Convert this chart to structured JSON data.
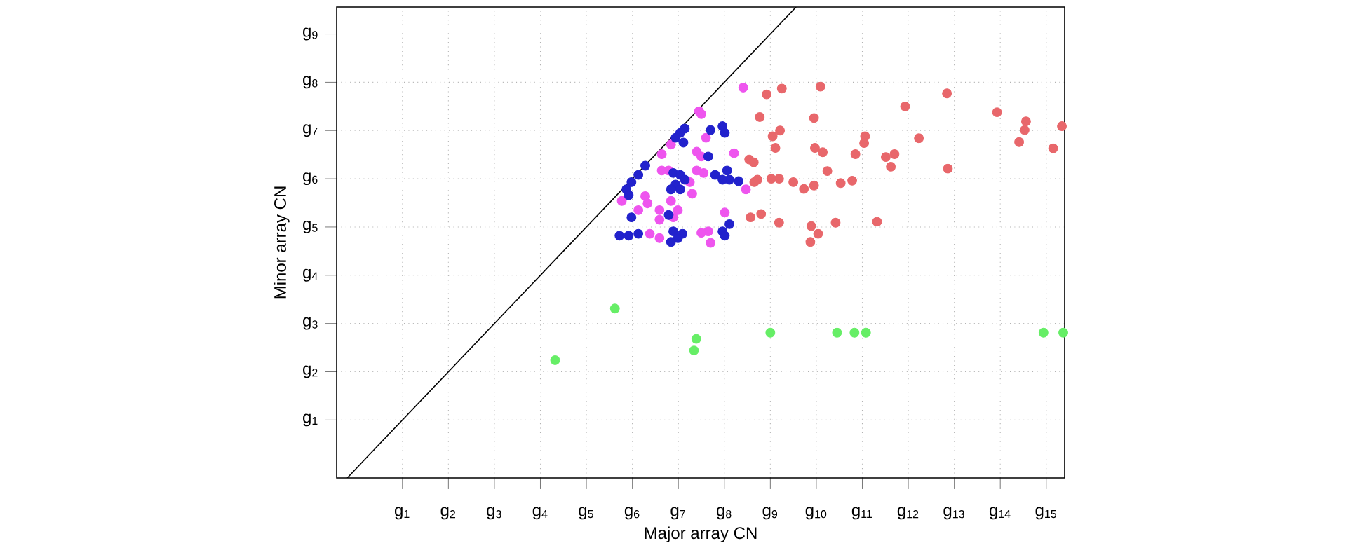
{
  "chart_data": {
    "type": "scatter",
    "xlabel": "Major array CN",
    "ylabel": "Minor array CN",
    "xlim": [
      -0.43,
      15.4
    ],
    "ylim": [
      -0.2,
      9.56
    ],
    "xticks": [
      {
        "value": 1,
        "label": "g$_{1}$"
      },
      {
        "value": 2,
        "label": "g$_{2}$"
      },
      {
        "value": 3,
        "label": "g$_{3}$"
      },
      {
        "value": 4,
        "label": "g$_{4}$"
      },
      {
        "value": 5,
        "label": "g$_{5}$"
      },
      {
        "value": 6,
        "label": "g$_{6}$"
      },
      {
        "value": 7,
        "label": "g$_{7}$"
      },
      {
        "value": 8,
        "label": "g$_{8}$"
      },
      {
        "value": 9,
        "label": "g$_{9}$"
      },
      {
        "value": 10,
        "label": "g$_{10}$"
      },
      {
        "value": 11,
        "label": "g$_{11}$"
      },
      {
        "value": 12,
        "label": "g$_{12}$"
      },
      {
        "value": 13,
        "label": "g$_{13}$"
      },
      {
        "value": 14,
        "label": "g$_{14}$"
      },
      {
        "value": 15,
        "label": "g$_{15}$"
      }
    ],
    "yticks": [
      {
        "value": 1,
        "label": "g$_{1}$"
      },
      {
        "value": 2,
        "label": "g$_{2}$"
      },
      {
        "value": 3,
        "label": "g$_{3}$"
      },
      {
        "value": 4,
        "label": "g$_{4}$"
      },
      {
        "value": 5,
        "label": "g$_{5}$"
      },
      {
        "value": 6,
        "label": "g$_{6}$"
      },
      {
        "value": 7,
        "label": "g$_{7}$"
      },
      {
        "value": 8,
        "label": "g$_{8}$"
      },
      {
        "value": 9,
        "label": "g$_{9}$"
      }
    ],
    "grid": true,
    "legend": false,
    "series": [
      {
        "type": "line",
        "marker": "none",
        "color": "#000000",
        "x": [
          -0.2,
          9.56
        ],
        "values": [
          -0.2,
          9.56
        ]
      },
      {
        "marker": "circle",
        "color": "#e8676b",
        "x": [
          8.92,
          9.25,
          10.09,
          8.77,
          9.95,
          9.21,
          9.05,
          9.11,
          9.97,
          10.14,
          11.06,
          11.04,
          10.85,
          11.93,
          12.84,
          12.23,
          11.51,
          11.7,
          11.62,
          12.86,
          10.24,
          8.72,
          9.02,
          9.19,
          9.5,
          9.73,
          9.95,
          10.53,
          10.78,
          8.8,
          9.19,
          9.89,
          10.04,
          9.87,
          10.42,
          11.32,
          13.93,
          14.56,
          14.53,
          14.41,
          15.15,
          15.34,
          8.54,
          8.64,
          8.57,
          8.65
        ],
        "values": [
          7.75,
          7.87,
          7.91,
          7.28,
          7.26,
          7.0,
          6.88,
          6.64,
          6.64,
          6.55,
          6.88,
          6.74,
          6.51,
          7.5,
          7.77,
          6.84,
          6.45,
          6.51,
          6.25,
          6.21,
          6.16,
          5.98,
          6.0,
          6.0,
          5.93,
          5.79,
          5.86,
          5.91,
          5.96,
          5.27,
          5.09,
          5.02,
          4.86,
          4.69,
          5.09,
          5.11,
          7.38,
          7.19,
          7.01,
          6.76,
          6.63,
          7.09,
          6.4,
          6.34,
          5.2,
          5.93
        ]
      },
      {
        "marker": "circle",
        "color": "#ee55ee",
        "x": [
          8.41,
          7.45,
          7.5,
          7.6,
          7.4,
          7.5,
          6.84,
          6.64,
          6.79,
          6.64,
          8.21,
          7.4,
          7.55,
          8.47,
          7.3,
          6.28,
          6.33,
          5.77,
          6.13,
          6.59,
          6.84,
          6.59,
          6.89,
          8.01,
          7.65,
          7.5,
          6.59,
          6.38,
          7.7,
          7.25,
          6.99
        ],
        "values": [
          7.89,
          7.4,
          7.34,
          6.85,
          6.56,
          6.46,
          6.71,
          6.51,
          6.17,
          6.17,
          6.53,
          6.17,
          6.12,
          5.78,
          5.69,
          5.64,
          5.49,
          5.54,
          5.35,
          5.35,
          5.54,
          5.15,
          5.2,
          5.3,
          4.91,
          4.88,
          4.77,
          4.86,
          4.67,
          5.93,
          5.35
        ]
      },
      {
        "marker": "circle",
        "color": "#2222cc",
        "x": [
          7.14,
          7.04,
          6.94,
          7.11,
          7.7,
          7.96,
          8.01,
          7.65,
          6.28,
          6.13,
          5.98,
          5.87,
          5.92,
          6.89,
          7.04,
          7.14,
          6.94,
          7.04,
          6.84,
          7.8,
          8.06,
          8.11,
          8.31,
          7.96,
          5.98,
          5.72,
          5.92,
          6.13,
          6.89,
          7.09,
          6.99,
          6.84,
          7.96,
          8.11,
          8.01,
          6.79
        ],
        "values": [
          7.04,
          6.95,
          6.85,
          6.75,
          7.01,
          7.09,
          6.95,
          6.46,
          6.27,
          6.08,
          5.93,
          5.78,
          5.66,
          6.12,
          6.08,
          5.98,
          5.88,
          5.78,
          5.78,
          6.08,
          6.17,
          5.98,
          5.95,
          5.98,
          5.2,
          4.82,
          4.82,
          4.86,
          4.91,
          4.86,
          4.77,
          4.69,
          4.91,
          5.06,
          4.82,
          5.25
        ]
      },
      {
        "marker": "circle",
        "color": "#66ee66",
        "x": [
          4.32,
          5.62,
          7.39,
          7.34,
          9.0,
          10.45,
          10.83,
          11.08,
          14.94,
          15.37
        ],
        "values": [
          2.24,
          3.31,
          2.68,
          2.44,
          2.81,
          2.81,
          2.81,
          2.81,
          2.81,
          2.81
        ]
      }
    ]
  }
}
